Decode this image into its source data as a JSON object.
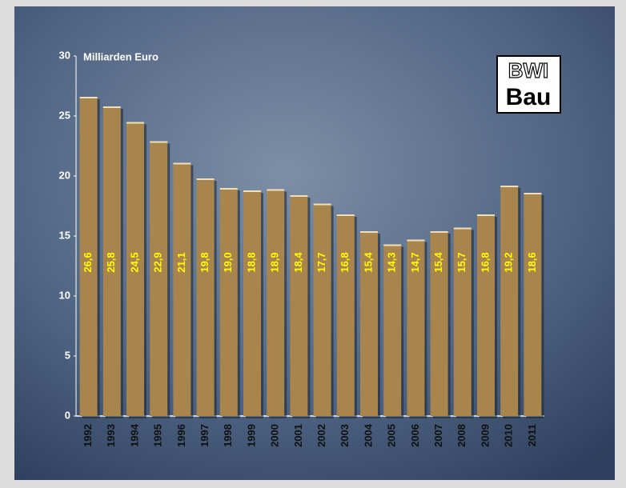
{
  "chart_data": {
    "type": "bar",
    "y_label": "Milliarden Euro",
    "logo": {
      "line1": "BWI",
      "line2": "Bau"
    },
    "categories": [
      "1992",
      "1993",
      "1994",
      "1995",
      "1996",
      "1997",
      "1998",
      "1999",
      "2000",
      "2001",
      "2002",
      "2003",
      "2004",
      "2005",
      "2006",
      "2007",
      "2008",
      "2009",
      "2010",
      "2011"
    ],
    "values": [
      26.6,
      25.8,
      24.5,
      22.9,
      21.1,
      19.8,
      19.0,
      18.8,
      18.9,
      18.4,
      17.7,
      16.8,
      15.4,
      14.3,
      14.7,
      15.4,
      15.7,
      16.8,
      19.2,
      18.6
    ],
    "value_labels": [
      "26,6",
      "25,8",
      "24,5",
      "22,9",
      "21,1",
      "19,8",
      "19,0",
      "18,8",
      "18,9",
      "18,4",
      "17,7",
      "16,8",
      "15,4",
      "14,3",
      "14,7",
      "15,4",
      "15,7",
      "16,8",
      "19,2",
      "18,6"
    ],
    "color": "#a8854d",
    "ylim": [
      0,
      30
    ],
    "yticks": [
      0,
      5,
      10,
      15,
      20,
      25,
      30
    ]
  }
}
